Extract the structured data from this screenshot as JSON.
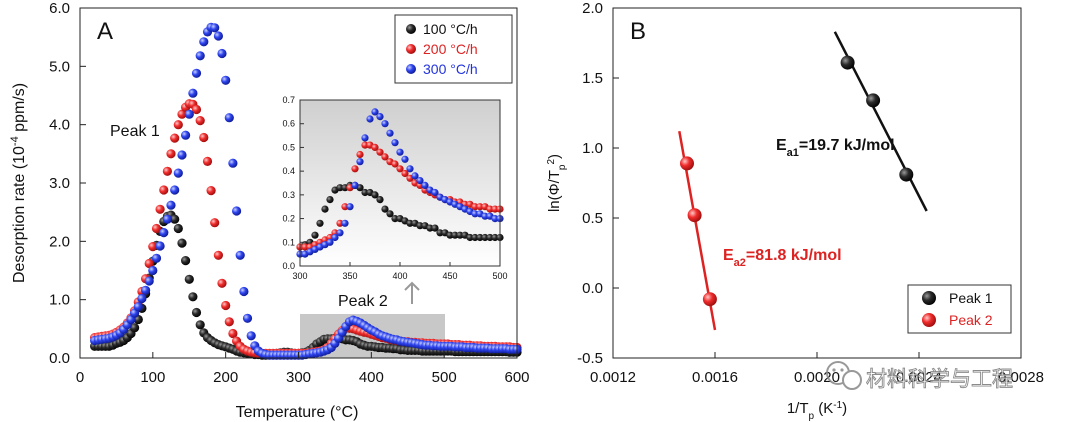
{
  "chart_data": [
    {
      "type": "scatter",
      "panel_label": "A",
      "xlabel": "Temperature (°C)",
      "ylabel": "Desorption rate (10⁻⁴ ppm/s)",
      "ylabel_parts": {
        "pre": "Desorption rate (10",
        "sup": "-4",
        "post": " ppm/s)"
      },
      "xlim": [
        0,
        600
      ],
      "ylim": [
        0,
        6.0
      ],
      "xticks": [
        0,
        100,
        200,
        300,
        400,
        500,
        600
      ],
      "yticks": [
        "0.0",
        "1.0",
        "2.0",
        "3.0",
        "4.0",
        "5.0",
        "6.0"
      ],
      "legend": [
        "100 °C/h",
        "200 °C/h",
        "300 °C/h"
      ],
      "annotations": {
        "peak1": "Peak 1",
        "peak2": "Peak 2"
      },
      "highlight_x": [
        300,
        500
      ],
      "series": [
        {
          "name": "100 °C/h",
          "color": "#111111",
          "x": [
            20,
            25,
            30,
            35,
            40,
            45,
            50,
            55,
            60,
            65,
            70,
            75,
            80,
            85,
            90,
            95,
            100,
            105,
            110,
            115,
            120,
            125,
            130,
            135,
            140,
            145,
            150,
            155,
            160,
            165,
            170,
            175,
            180,
            185,
            190,
            195,
            200,
            205,
            210,
            215,
            220,
            225,
            230,
            235,
            240,
            245,
            250,
            255,
            260,
            265,
            270,
            275,
            280,
            285,
            290,
            295,
            300,
            305,
            310,
            315,
            320,
            325,
            330,
            335,
            340,
            345,
            350,
            355,
            360,
            365,
            370,
            375,
            380,
            385,
            390,
            395,
            400,
            405,
            410,
            415,
            420,
            425,
            430,
            435,
            440,
            445,
            450,
            455,
            460,
            465,
            470,
            475,
            480,
            485,
            490,
            495,
            500,
            505,
            510,
            515,
            520,
            525,
            530,
            535,
            540,
            545,
            550,
            555,
            560,
            565,
            570,
            575,
            580,
            585,
            590,
            595,
            600
          ],
          "y": [
            0.2,
            0.2,
            0.2,
            0.2,
            0.2,
            0.22,
            0.25,
            0.27,
            0.3,
            0.35,
            0.42,
            0.52,
            0.66,
            0.85,
            1.1,
            1.37,
            1.66,
            1.93,
            2.17,
            2.34,
            2.43,
            2.45,
            2.38,
            2.22,
            1.97,
            1.67,
            1.35,
            1.05,
            0.78,
            0.57,
            0.43,
            0.35,
            0.3,
            0.26,
            0.23,
            0.21,
            0.19,
            0.17,
            0.15,
            0.12,
            0.1,
            0.09,
            0.08,
            0.07,
            0.06,
            0.06,
            0.05,
            0.05,
            0.06,
            0.07,
            0.08,
            0.09,
            0.1,
            0.1,
            0.09,
            0.08,
            0.08,
            0.09,
            0.1,
            0.13,
            0.18,
            0.24,
            0.28,
            0.32,
            0.33,
            0.33,
            0.34,
            0.34,
            0.33,
            0.31,
            0.31,
            0.3,
            0.28,
            0.24,
            0.22,
            0.2,
            0.2,
            0.19,
            0.18,
            0.18,
            0.17,
            0.17,
            0.16,
            0.16,
            0.14,
            0.14,
            0.13,
            0.13,
            0.13,
            0.13,
            0.12,
            0.12,
            0.12,
            0.12,
            0.12,
            0.12,
            0.12,
            0.12,
            0.12,
            0.11,
            0.11,
            0.11,
            0.11,
            0.11,
            0.11,
            0.11,
            0.11,
            0.11,
            0.11,
            0.11,
            0.11,
            0.11,
            0.11,
            0.11,
            0.1,
            0.1,
            0.1
          ]
        },
        {
          "name": "200 °C/h",
          "color": "#dd2222",
          "x": [
            20,
            25,
            30,
            35,
            40,
            45,
            50,
            55,
            60,
            65,
            70,
            75,
            80,
            85,
            90,
            95,
            100,
            105,
            110,
            115,
            120,
            125,
            130,
            135,
            140,
            145,
            150,
            155,
            160,
            165,
            170,
            175,
            180,
            185,
            190,
            195,
            200,
            205,
            210,
            215,
            220,
            225,
            230,
            235,
            240,
            245,
            250,
            255,
            260,
            265,
            270,
            275,
            280,
            285,
            290,
            295,
            300,
            305,
            310,
            315,
            320,
            325,
            330,
            335,
            340,
            345,
            350,
            355,
            360,
            365,
            370,
            375,
            380,
            385,
            390,
            395,
            400,
            405,
            410,
            415,
            420,
            425,
            430,
            435,
            440,
            445,
            450,
            455,
            460,
            465,
            470,
            475,
            480,
            485,
            490,
            495,
            500,
            505,
            510,
            515,
            520,
            525,
            530,
            535,
            540,
            545,
            550,
            555,
            560,
            565,
            570,
            575,
            580,
            585,
            590,
            595,
            600
          ],
          "y": [
            0.35,
            0.36,
            0.37,
            0.38,
            0.39,
            0.41,
            0.44,
            0.48,
            0.53,
            0.6,
            0.69,
            0.81,
            0.96,
            1.14,
            1.36,
            1.62,
            1.91,
            2.22,
            2.55,
            2.88,
            3.2,
            3.5,
            3.77,
            4.0,
            4.18,
            4.3,
            4.36,
            4.35,
            4.26,
            4.07,
            3.78,
            3.37,
            2.87,
            2.32,
            1.76,
            1.28,
            0.9,
            0.62,
            0.42,
            0.29,
            0.2,
            0.15,
            0.12,
            0.1,
            0.09,
            0.08,
            0.08,
            0.08,
            0.08,
            0.08,
            0.08,
            0.08,
            0.08,
            0.08,
            0.08,
            0.08,
            0.08,
            0.08,
            0.08,
            0.09,
            0.1,
            0.11,
            0.12,
            0.14,
            0.18,
            0.25,
            0.33,
            0.41,
            0.47,
            0.51,
            0.51,
            0.5,
            0.48,
            0.46,
            0.44,
            0.43,
            0.41,
            0.39,
            0.37,
            0.35,
            0.34,
            0.32,
            0.31,
            0.3,
            0.29,
            0.28,
            0.28,
            0.27,
            0.27,
            0.26,
            0.26,
            0.25,
            0.25,
            0.25,
            0.24,
            0.24,
            0.24,
            0.24,
            0.23,
            0.23,
            0.23,
            0.22,
            0.22,
            0.22,
            0.21,
            0.21,
            0.21,
            0.2,
            0.2,
            0.2,
            0.2,
            0.19,
            0.19,
            0.19,
            0.19,
            0.18,
            0.18
          ]
        },
        {
          "name": "300 °C/h",
          "color": "#2233dd",
          "x": [
            20,
            25,
            30,
            35,
            40,
            45,
            50,
            55,
            60,
            65,
            70,
            75,
            80,
            85,
            90,
            95,
            100,
            105,
            110,
            115,
            120,
            125,
            130,
            135,
            140,
            145,
            150,
            155,
            160,
            165,
            170,
            175,
            180,
            185,
            190,
            195,
            200,
            205,
            210,
            215,
            220,
            225,
            230,
            235,
            240,
            245,
            250,
            255,
            260,
            265,
            270,
            275,
            280,
            285,
            290,
            295,
            300,
            305,
            310,
            315,
            320,
            325,
            330,
            335,
            340,
            345,
            350,
            355,
            360,
            365,
            370,
            375,
            380,
            385,
            390,
            395,
            400,
            405,
            410,
            415,
            420,
            425,
            430,
            435,
            440,
            445,
            450,
            455,
            460,
            465,
            470,
            475,
            480,
            485,
            490,
            495,
            500,
            505,
            510,
            515,
            520,
            525,
            530,
            535,
            540,
            545,
            550,
            555,
            560,
            565,
            570,
            575,
            580,
            585,
            590,
            595,
            600
          ],
          "y": [
            0.3,
            0.31,
            0.32,
            0.33,
            0.34,
            0.36,
            0.39,
            0.43,
            0.49,
            0.57,
            0.66,
            0.77,
            0.88,
            1.02,
            1.16,
            1.32,
            1.5,
            1.71,
            1.92,
            2.15,
            2.38,
            2.62,
            2.88,
            3.17,
            3.48,
            3.82,
            4.18,
            4.54,
            4.88,
            5.18,
            5.42,
            5.59,
            5.67,
            5.66,
            5.52,
            5.22,
            4.76,
            4.12,
            3.34,
            2.52,
            1.76,
            1.14,
            0.68,
            0.38,
            0.21,
            0.12,
            0.08,
            0.06,
            0.05,
            0.05,
            0.05,
            0.05,
            0.05,
            0.05,
            0.05,
            0.05,
            0.05,
            0.05,
            0.06,
            0.07,
            0.08,
            0.09,
            0.1,
            0.12,
            0.14,
            0.18,
            0.25,
            0.34,
            0.44,
            0.54,
            0.62,
            0.65,
            0.63,
            0.6,
            0.56,
            0.52,
            0.48,
            0.45,
            0.41,
            0.38,
            0.36,
            0.34,
            0.32,
            0.31,
            0.29,
            0.28,
            0.27,
            0.26,
            0.25,
            0.24,
            0.23,
            0.22,
            0.22,
            0.21,
            0.21,
            0.2,
            0.2,
            0.2,
            0.2,
            0.19,
            0.19,
            0.19,
            0.18,
            0.18,
            0.18,
            0.17,
            0.17,
            0.17,
            0.17,
            0.16,
            0.16,
            0.16,
            0.16,
            0.16,
            0.15,
            0.15,
            0.15
          ]
        }
      ],
      "inset": {
        "xlim": [
          300,
          500
        ],
        "ylim": [
          0,
          0.7
        ],
        "xticks": [
          300,
          350,
          400,
          450,
          500
        ],
        "yticks": [
          "0.0",
          "0.1",
          "0.2",
          "0.3",
          "0.4",
          "0.5",
          "0.6",
          "0.7"
        ]
      }
    },
    {
      "type": "scatter",
      "panel_label": "B",
      "xlabel": "1/Tp (K⁻¹)",
      "xlabel_parts": {
        "pre": "1/T",
        "sub": "p",
        "mid": " (K",
        "sup": "-1",
        "post": ")"
      },
      "ylabel": "ln(Φ/Tp²)",
      "ylabel_parts": {
        "pre": "ln(Φ/T",
        "sub": "p",
        "sup": "2",
        "post": ")"
      },
      "xlim": [
        0.0012,
        0.0028
      ],
      "ylim": [
        -0.5,
        2.0
      ],
      "xticks": [
        "0.0012",
        "0.0016",
        "0.0020",
        "0.0024",
        "0.0028"
      ],
      "yticks": [
        "-0.5",
        "0.0",
        "0.5",
        "1.0",
        "1.5",
        "2.0"
      ],
      "legend": [
        "Peak 1",
        "Peak 2"
      ],
      "series": [
        {
          "name": "Peak 1",
          "color": "#111111",
          "x": [
            0.00212,
            0.00222,
            0.00235
          ],
          "y": [
            1.61,
            1.34,
            0.81
          ],
          "fit": {
            "x": [
              0.00207,
              0.00243
            ],
            "y": [
              1.83,
              0.55
            ]
          },
          "label": "Ea1=19.7 kJ/mol",
          "label_parts": {
            "pre": "E",
            "sub": "a1",
            "post": "=19.7 kJ/mol"
          }
        },
        {
          "name": "Peak 2",
          "color": "#dd2222",
          "x": [
            0.00149,
            0.00152,
            0.00158
          ],
          "y": [
            0.89,
            0.52,
            -0.08
          ],
          "fit": {
            "x": [
              0.00146,
              0.0016
            ],
            "y": [
              1.12,
              -0.3
            ]
          },
          "label": "Ea2=81.8 kJ/mol",
          "label_parts": {
            "pre": "E",
            "sub": "a2",
            "post": "=81.8 kJ/mol"
          }
        }
      ]
    }
  ],
  "watermark": "材料科学与工程"
}
